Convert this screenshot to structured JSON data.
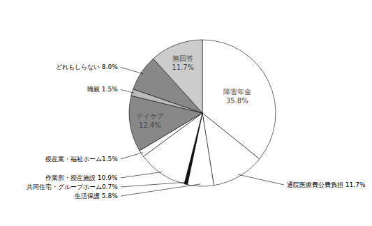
{
  "chart_data": {
    "type": "pie",
    "categories": [
      "障害年金\n35.8%",
      "通院医療費公費負担 11.7%",
      "生活保護 5.8%",
      "共同住宅・グループホーム0.7%",
      "作業所・授産施設 10.9%",
      "授産業・福祉ホーム1.5%",
      "デイケア\n12.4%",
      "職親 1.5%",
      "どれもしらない 8.0%",
      "無回答\n11.7%"
    ],
    "values": [
      35.8,
      11.7,
      5.8,
      0.7,
      10.9,
      1.5,
      12.4,
      1.5,
      8.0,
      11.7
    ],
    "colors": [
      "#ffffff",
      "#ffffff",
      "#ffffff",
      "#111111",
      "#ffffff",
      "#ffffff",
      "#888888",
      "#bbbbbb",
      "#888888",
      "#cccccc"
    ]
  }
}
